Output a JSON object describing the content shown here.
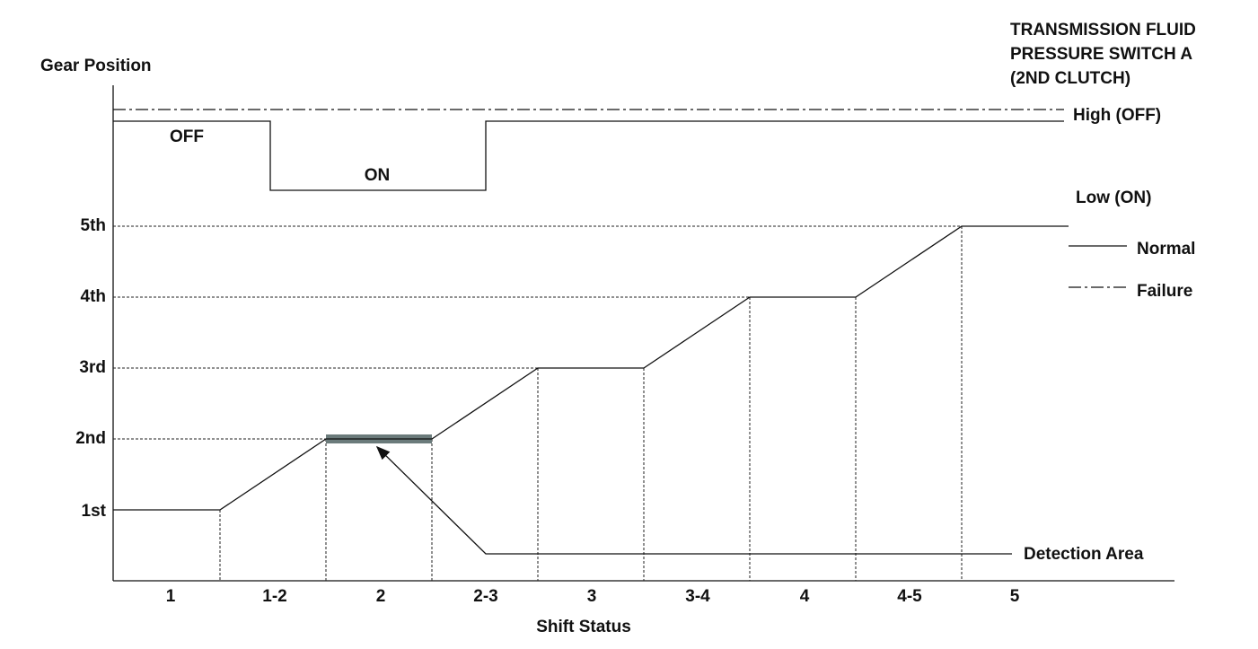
{
  "y_axis": {
    "title": "Gear Position",
    "labels": [
      "5th",
      "4th",
      "3rd",
      "2nd",
      "1st"
    ]
  },
  "x_axis": {
    "title": "Shift Status",
    "labels": [
      "1",
      "1-2",
      "2",
      "2-3",
      "3",
      "3-4",
      "4",
      "4-5",
      "5"
    ]
  },
  "switch": {
    "title_lines": [
      "TRANSMISSION FLUID",
      "PRESSURE SWITCH A",
      "(2ND CLUTCH)"
    ],
    "high": "High (OFF)",
    "low": "Low (ON)",
    "off": "OFF",
    "on": "ON"
  },
  "legend": {
    "normal": "Normal",
    "failure": "Failure"
  },
  "annotation": "Detection Area"
}
